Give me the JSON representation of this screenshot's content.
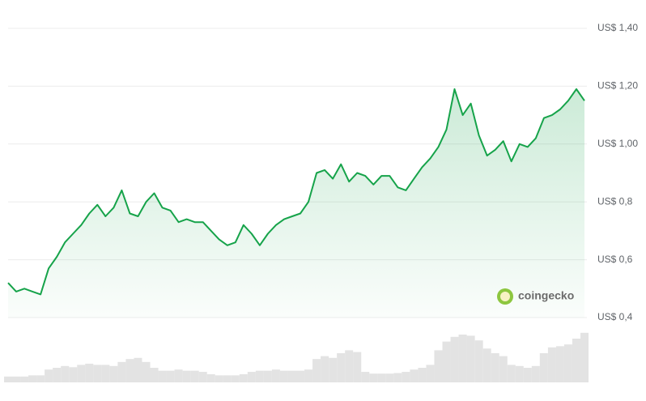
{
  "chart_data": [
    {
      "type": "line",
      "color": "#16a34a",
      "watermark": "coingecko",
      "values": [
        0.52,
        0.49,
        0.5,
        0.49,
        0.48,
        0.57,
        0.61,
        0.66,
        0.69,
        0.72,
        0.76,
        0.79,
        0.75,
        0.78,
        0.84,
        0.76,
        0.75,
        0.8,
        0.83,
        0.78,
        0.77,
        0.73,
        0.74,
        0.73,
        0.73,
        0.7,
        0.67,
        0.65,
        0.66,
        0.72,
        0.69,
        0.65,
        0.69,
        0.72,
        0.74,
        0.75,
        0.76,
        0.8,
        0.9,
        0.91,
        0.88,
        0.93,
        0.87,
        0.9,
        0.89,
        0.86,
        0.89,
        0.89,
        0.85,
        0.84,
        0.88,
        0.92,
        0.95,
        0.99,
        1.05,
        1.19,
        1.1,
        1.14,
        1.03,
        0.96,
        0.98,
        1.01,
        0.94,
        1.0,
        0.99,
        1.02,
        1.09,
        1.1,
        1.12,
        1.15,
        1.19,
        1.15
      ],
      "ylim": [
        0.4,
        1.4
      ],
      "yticks": [
        {
          "value": 0.4,
          "label": "US$ 0,4"
        },
        {
          "value": 0.6,
          "label": "US$ 0,6"
        },
        {
          "value": 0.8,
          "label": "US$ 0,8"
        },
        {
          "value": 1.0,
          "label": "US$ 1,00"
        },
        {
          "value": 1.2,
          "label": "US$ 1,20"
        },
        {
          "value": 1.4,
          "label": "US$ 1,40"
        }
      ],
      "grid": true
    },
    {
      "type": "bar",
      "color": "#e3e3e3",
      "values": [
        10,
        10,
        10,
        12,
        12,
        22,
        25,
        28,
        26,
        30,
        32,
        30,
        30,
        28,
        35,
        40,
        42,
        35,
        25,
        20,
        20,
        22,
        20,
        20,
        18,
        14,
        12,
        12,
        12,
        14,
        18,
        20,
        20,
        22,
        20,
        20,
        20,
        22,
        40,
        45,
        42,
        50,
        55,
        52,
        18,
        15,
        15,
        15,
        16,
        18,
        22,
        25,
        30,
        55,
        70,
        78,
        82,
        80,
        72,
        58,
        50,
        45,
        30,
        28,
        25,
        28,
        50,
        60,
        62,
        65,
        75,
        85
      ],
      "ylim": [
        0,
        100
      ]
    }
  ]
}
